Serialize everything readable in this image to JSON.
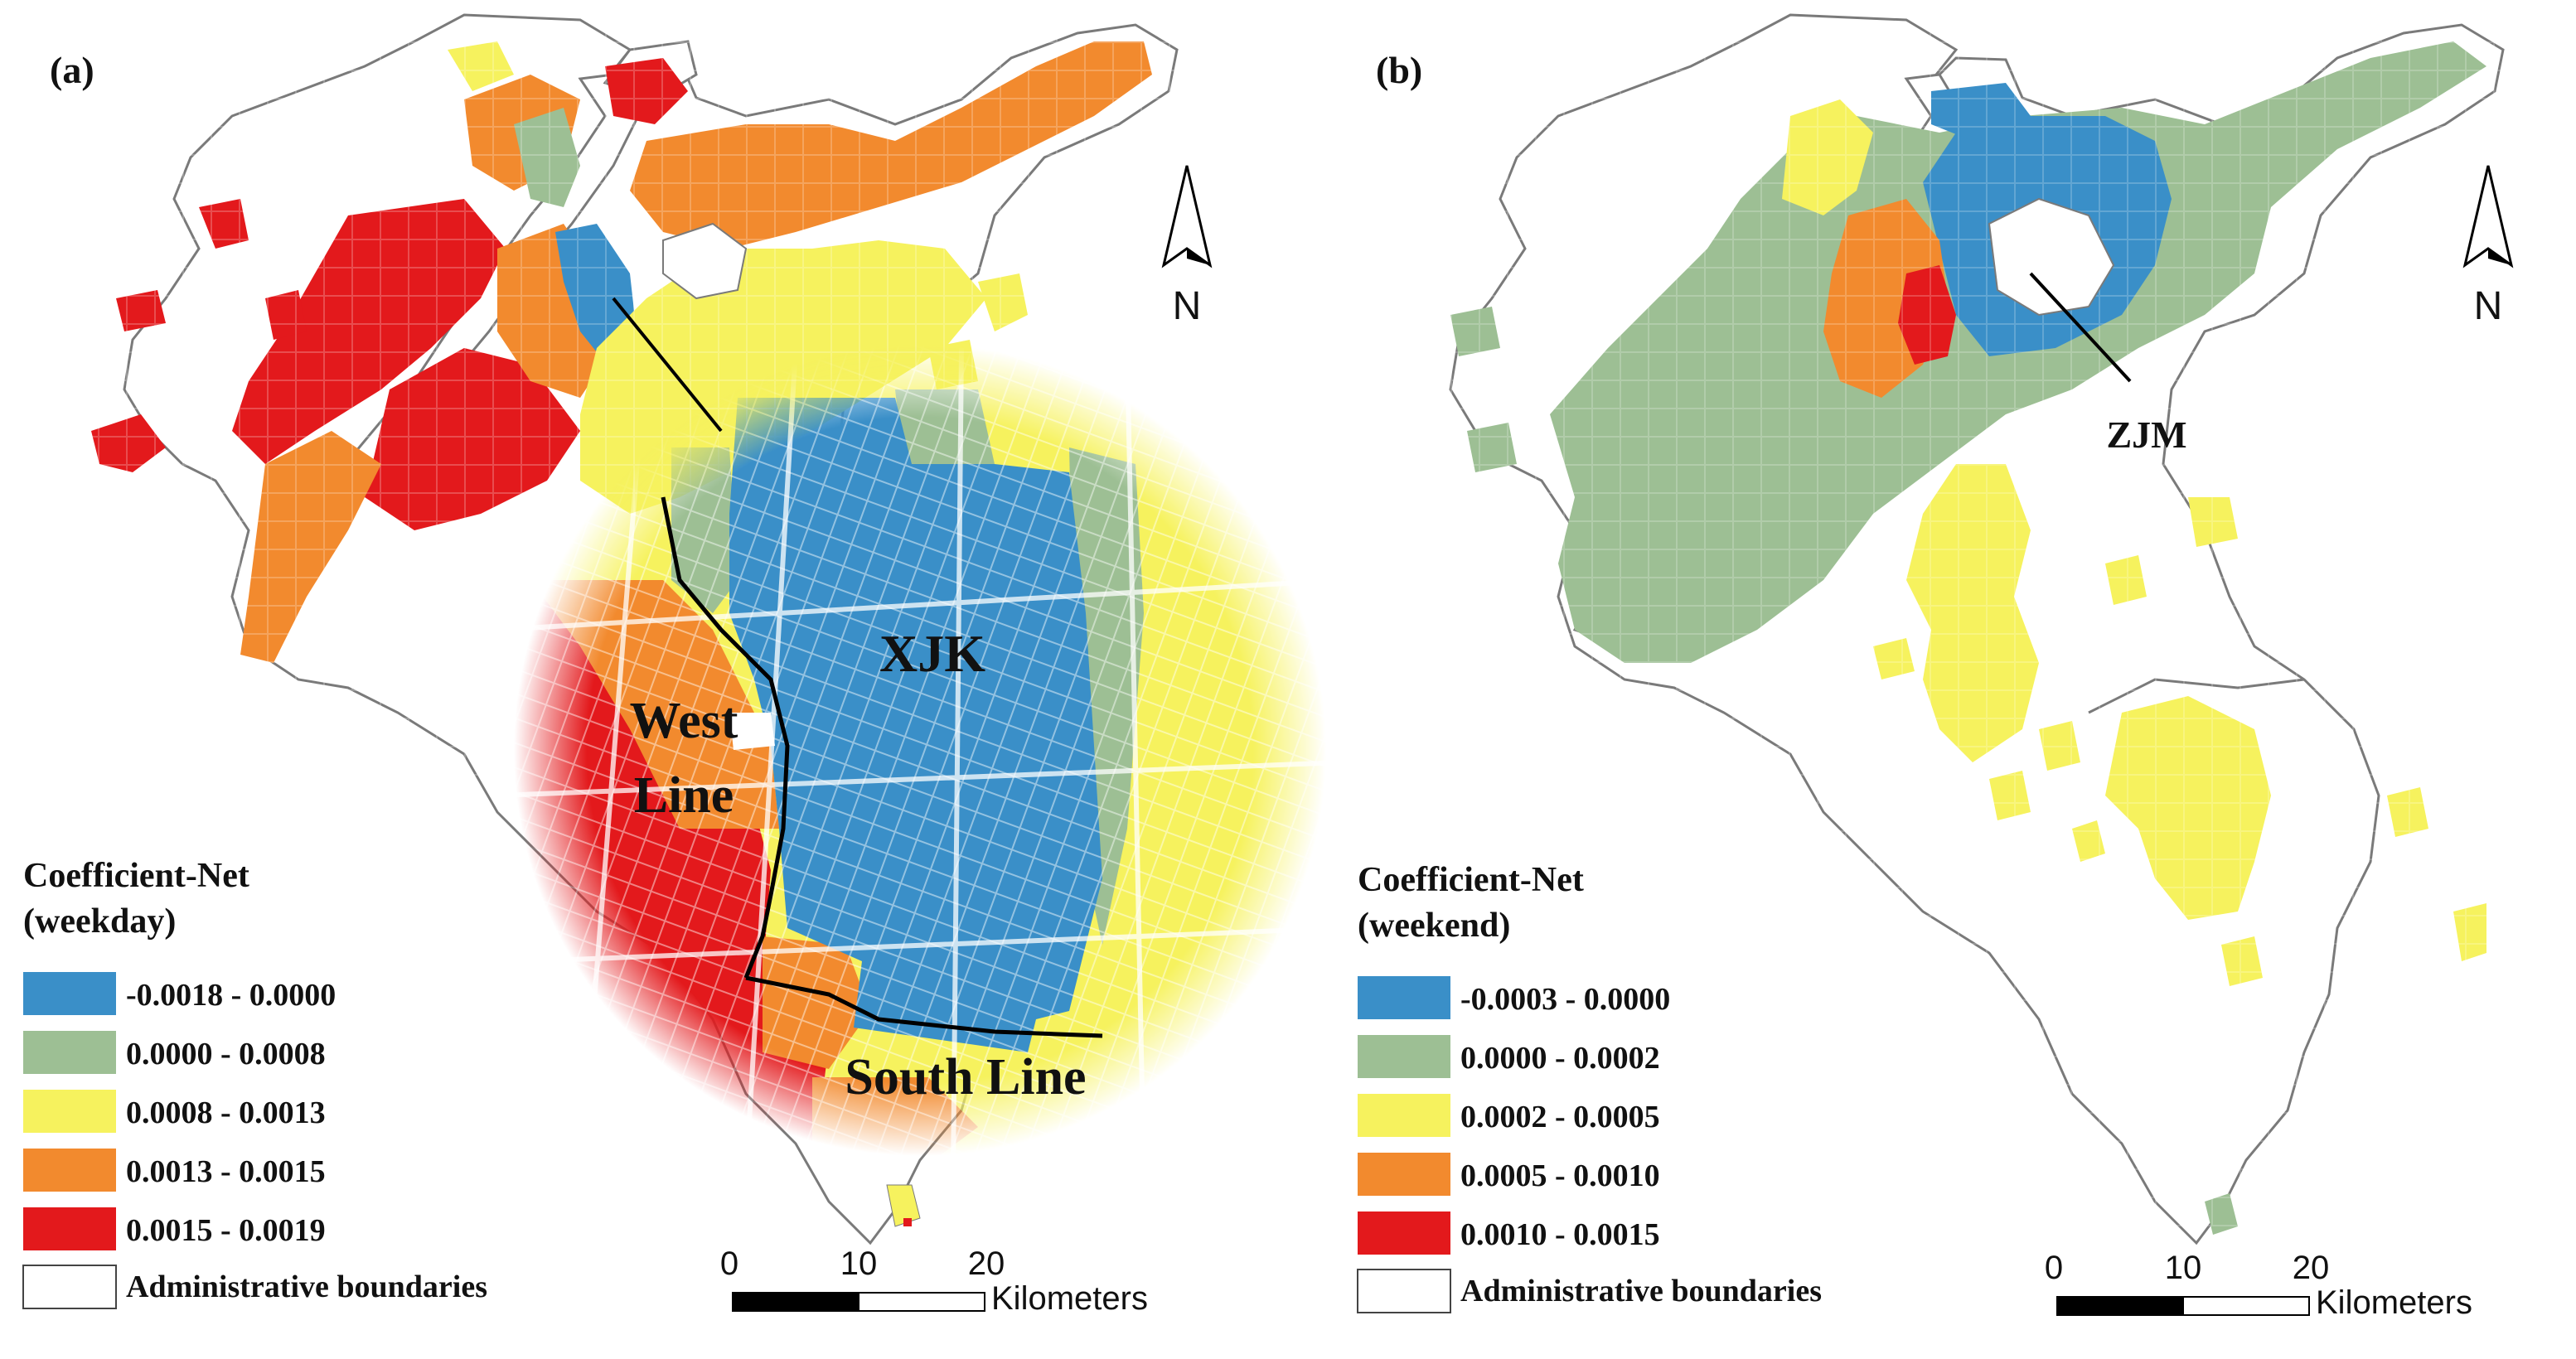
{
  "panels": [
    {
      "id": "a",
      "label": "(a)",
      "legend": {
        "title_line1": "Coefficient-Net",
        "title_line2": "(weekday)",
        "classes": [
          {
            "label": "-0.0018 - 0.0000",
            "color": "#3a8fc8"
          },
          {
            "label": "0.0000 - 0.0008",
            "color": "#9dbf94"
          },
          {
            "label": "0.0008 - 0.0013",
            "color": "#f6f25e"
          },
          {
            "label": "0.0013 - 0.0015",
            "color": "#f28a2e"
          },
          {
            "label": "0.0015 - 0.0019",
            "color": "#e3191c"
          }
        ],
        "boundary_label": "Administrative boundaries"
      },
      "annotations": {
        "inset_main": "XJK",
        "west_line_1": "West",
        "west_line_2": "Line",
        "south_line": "South Line"
      },
      "north_label": "N",
      "scalebar": {
        "ticks": [
          "0",
          "10",
          "20"
        ],
        "unit": "Kilometers"
      }
    },
    {
      "id": "b",
      "label": "(b)",
      "legend": {
        "title_line1": "Coefficient-Net",
        "title_line2": "(weekend)",
        "classes": [
          {
            "label": "-0.0003 - 0.0000",
            "color": "#3a8fc8"
          },
          {
            "label": "0.0000 - 0.0002",
            "color": "#9dbf94"
          },
          {
            "label": "0.0002 - 0.0005",
            "color": "#f6f25e"
          },
          {
            "label": "0.0005 - 0.0010",
            "color": "#f28a2e"
          },
          {
            "label": "0.0010 - 0.0015",
            "color": "#e3191c"
          }
        ],
        "boundary_label": "Administrative boundaries"
      },
      "annotations": {
        "callout": "ZJM"
      },
      "north_label": "N",
      "scalebar": {
        "ticks": [
          "0",
          "10",
          "20"
        ],
        "unit": "Kilometers"
      }
    }
  ],
  "colors": {
    "boundary": "#777777",
    "river": "#ffffff",
    "road": "#ffffff"
  }
}
